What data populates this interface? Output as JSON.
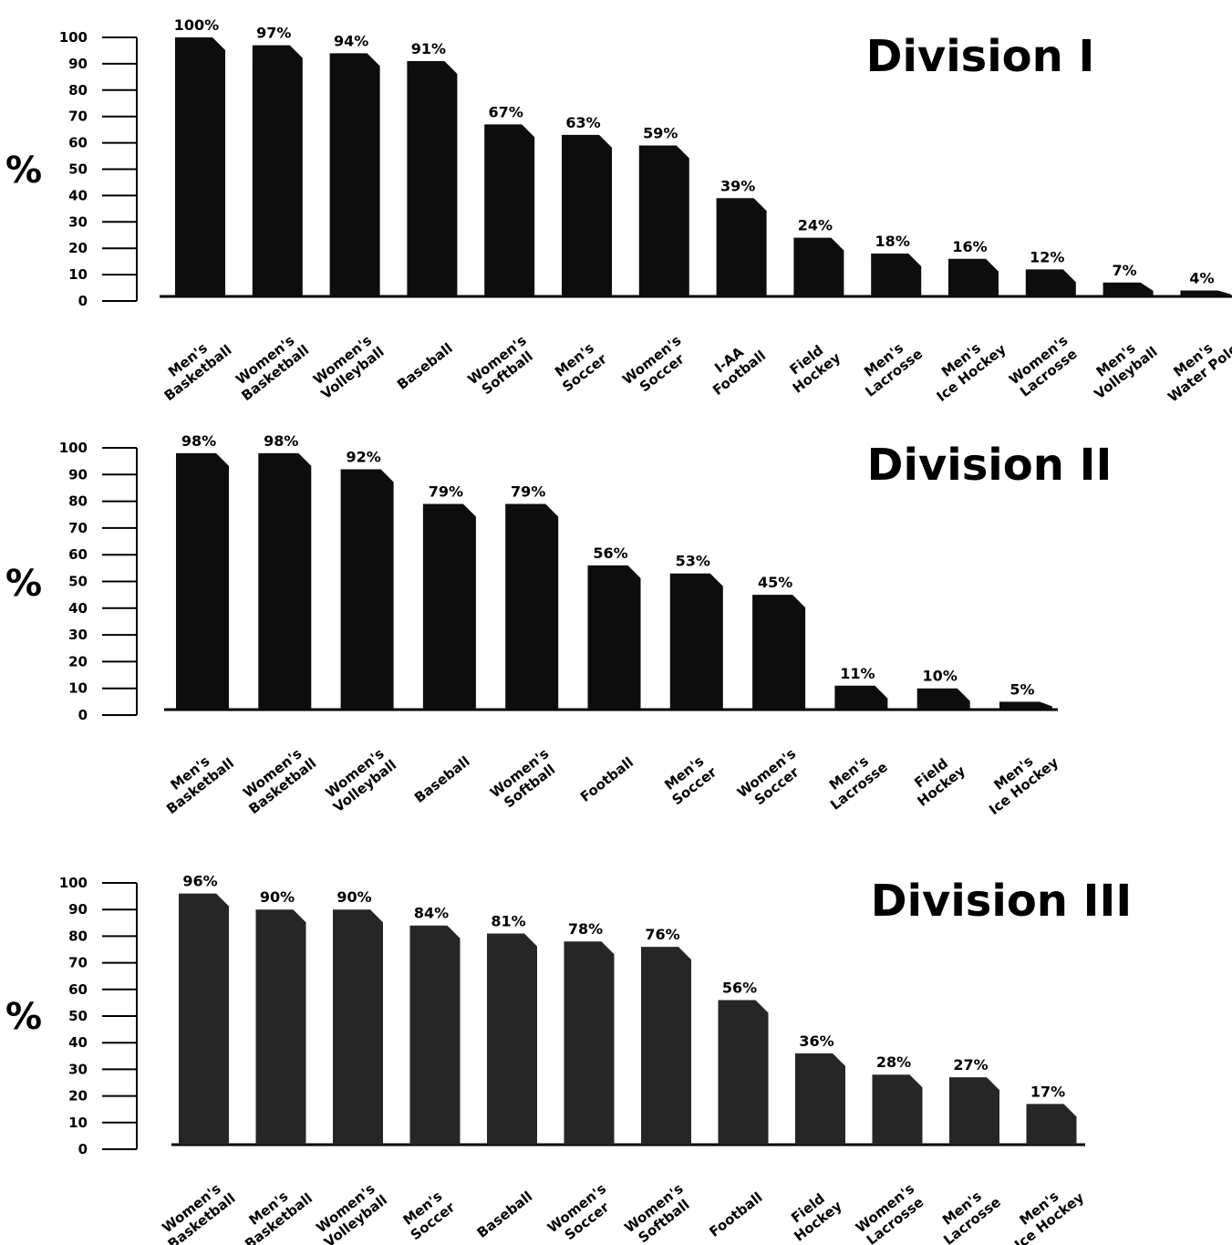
{
  "chart_data": [
    {
      "type": "bar",
      "title": "Division I",
      "ylabel": "%",
      "ylim": [
        0,
        100
      ],
      "yticks": [
        "100",
        "90",
        "80",
        "70",
        "60",
        "50",
        "40",
        "30",
        "20",
        "10",
        "0"
      ],
      "categories": [
        [
          "Men's",
          "Basketball"
        ],
        [
          "Women's",
          "Basketball"
        ],
        [
          "Women's",
          "Volleyball"
        ],
        [
          "Baseball"
        ],
        [
          "Women's",
          "Softball"
        ],
        [
          "Men's",
          "Soccer"
        ],
        [
          "Women's",
          "Soccer"
        ],
        [
          "I-AA",
          "Football"
        ],
        [
          "Field",
          "Hockey"
        ],
        [
          "Men's",
          "Lacrosse"
        ],
        [
          "Men's",
          "Ice Hockey"
        ],
        [
          "Women's",
          "Lacrosse"
        ],
        [
          "Men's",
          "Volleyball"
        ],
        [
          "Men's",
          "Water Polo"
        ]
      ],
      "values": [
        100,
        97,
        94,
        91,
        67,
        63,
        59,
        39,
        24,
        18,
        16,
        12,
        7,
        4
      ],
      "labels": [
        "100%",
        "97%",
        "94%",
        "91%",
        "67%",
        "63%",
        "59%",
        "39%",
        "24%",
        "18%",
        "16%",
        "12%",
        "7%",
        "4%"
      ],
      "bar_color": "#0d0d0d"
    },
    {
      "type": "bar",
      "title": "Division II",
      "ylabel": "%",
      "ylim": [
        0,
        100
      ],
      "yticks": [
        "100",
        "90",
        "80",
        "70",
        "60",
        "50",
        "40",
        "30",
        "20",
        "10",
        "0"
      ],
      "categories": [
        [
          "Men's",
          "Basketball"
        ],
        [
          "Women's",
          "Basketball"
        ],
        [
          "Women's",
          "Volleyball"
        ],
        [
          "Baseball"
        ],
        [
          "Women's",
          "Softball"
        ],
        [
          "Football"
        ],
        [
          "Men's",
          "Soccer"
        ],
        [
          "Women's",
          "Soccer"
        ],
        [
          "Men's",
          "Lacrosse"
        ],
        [
          "Field",
          "Hockey"
        ],
        [
          "Men's",
          "Ice Hockey"
        ]
      ],
      "values": [
        98,
        98,
        92,
        79,
        79,
        56,
        53,
        45,
        11,
        10,
        5
      ],
      "labels": [
        "98%",
        "98%",
        "92%",
        "79%",
        "79%",
        "56%",
        "53%",
        "45%",
        "11%",
        "10%",
        "5%"
      ],
      "bar_color": "#0d0d0d"
    },
    {
      "type": "bar",
      "title": "Division III",
      "ylabel": "%",
      "ylim": [
        0,
        100
      ],
      "yticks": [
        "100",
        "90",
        "80",
        "70",
        "60",
        "50",
        "40",
        "30",
        "20",
        "10",
        "0"
      ],
      "categories": [
        [
          "Women's",
          "Basketball"
        ],
        [
          "Men's",
          "Basketball"
        ],
        [
          "Women's",
          "Volleyball"
        ],
        [
          "Men's",
          "Soccer"
        ],
        [
          "Baseball"
        ],
        [
          "Women's",
          "Soccer"
        ],
        [
          "Women's",
          "Softball"
        ],
        [
          "Football"
        ],
        [
          "Field",
          "Hockey"
        ],
        [
          "Women's",
          "Lacrosse"
        ],
        [
          "Men's",
          "Lacrosse"
        ],
        [
          "Men's",
          "Ice Hockey"
        ]
      ],
      "values": [
        96,
        90,
        90,
        84,
        81,
        78,
        76,
        56,
        36,
        28,
        27,
        17
      ],
      "labels": [
        "96%",
        "90%",
        "90%",
        "84%",
        "81%",
        "78%",
        "76%",
        "56%",
        "36%",
        "28%",
        "27%",
        "17%"
      ],
      "bar_color": "#262626"
    }
  ]
}
